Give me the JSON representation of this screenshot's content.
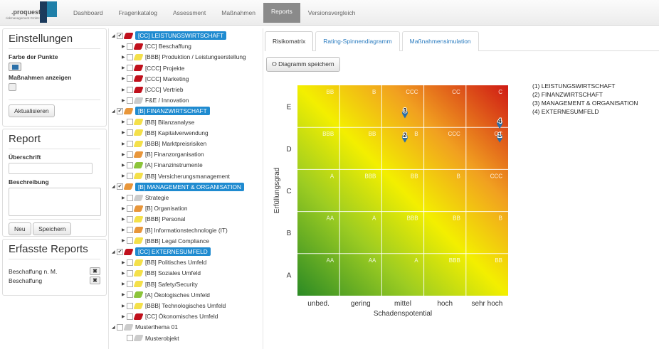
{
  "brand": {
    "name": ".proquest",
    "sub": "riskmanagement GmbH"
  },
  "nav": {
    "items": [
      "Dashboard",
      "Fragenkatalog",
      "Assessment",
      "Maßnahmen",
      "Reports",
      "Versionsvergleich"
    ],
    "active": 4
  },
  "settings": {
    "title": "Einstellungen",
    "color_label": "Farbe der Punkte",
    "color_value": "#2a6fa8",
    "measures_label": "Maßnahmen anzeigen",
    "update_button": "Aktualisieren"
  },
  "report": {
    "title": "Report",
    "heading_label": "Überschrift",
    "heading_value": "",
    "desc_label": "Beschreibung",
    "desc_value": "",
    "new_button": "Neu",
    "save_button": "Speichern"
  },
  "saved": {
    "title": "Erfasste Reports",
    "items": [
      "Beschaffung n. M.",
      "Beschaffung"
    ],
    "delete_icon": "x-icon"
  },
  "tree": [
    {
      "label": "[CC] LEISTUNGSWIRTSCHAFT",
      "level": 0,
      "color": "red",
      "checked": true,
      "hl": true
    },
    {
      "label": "[CC] Beschaffung",
      "level": 1,
      "color": "red"
    },
    {
      "label": "[BBB] Produktion / Leistungserstellung",
      "level": 1,
      "color": "yel"
    },
    {
      "label": "[CCC] Projekte",
      "level": 1,
      "color": "red"
    },
    {
      "label": "[CCC] Marketing",
      "level": 1,
      "color": "red"
    },
    {
      "label": "[CCC] Vertrieb",
      "level": 1,
      "color": "red"
    },
    {
      "label": "F&E / Innovation",
      "level": 1,
      "color": "gry"
    },
    {
      "label": "[B] FINANZWIRTSCHAFT",
      "level": 0,
      "color": "ora",
      "checked": true,
      "hl": true
    },
    {
      "label": "[BB] Bilanzanalyse",
      "level": 1,
      "color": "yel"
    },
    {
      "label": "[BB] Kapitalverwendung",
      "level": 1,
      "color": "yel"
    },
    {
      "label": "[BBB] Marktpreisrisiken",
      "level": 1,
      "color": "yel"
    },
    {
      "label": "[B] Finanzorganisation",
      "level": 1,
      "color": "ora"
    },
    {
      "label": "[A] Finanzinstrumente",
      "level": 1,
      "color": "grn"
    },
    {
      "label": "[BB] Versicherungsmanagement",
      "level": 1,
      "color": "yel"
    },
    {
      "label": "[B] MANAGEMENT & ORGANISATION",
      "level": 0,
      "color": "ora",
      "checked": true,
      "hl": true
    },
    {
      "label": "Strategie",
      "level": 1,
      "color": "gry"
    },
    {
      "label": "[B] Organisation",
      "level": 1,
      "color": "ora"
    },
    {
      "label": "[BBB] Personal",
      "level": 1,
      "color": "yel"
    },
    {
      "label": "[B] Informationstechnologie (IT)",
      "level": 1,
      "color": "ora"
    },
    {
      "label": "[BBB] Legal Compliance",
      "level": 1,
      "color": "yel"
    },
    {
      "label": "[CC] EXTERNESUMFELD",
      "level": 0,
      "color": "red",
      "checked": true,
      "hl": true
    },
    {
      "label": "[BB] Politisches Umfeld",
      "level": 1,
      "color": "yel"
    },
    {
      "label": "[BB] Soziales Umfeld",
      "level": 1,
      "color": "yel"
    },
    {
      "label": "[BB] Safety/Security",
      "level": 1,
      "color": "yel"
    },
    {
      "label": "[A] Ökologisches Umfeld",
      "level": 1,
      "color": "grn"
    },
    {
      "label": "[BBB] Technologisches Umfeld",
      "level": 1,
      "color": "yel"
    },
    {
      "label": "[CC] Ökonomisches Umfeld",
      "level": 1,
      "color": "red"
    },
    {
      "label": "Musterthema 01",
      "level": 0,
      "color": "gry",
      "checked": false,
      "hl": false
    },
    {
      "label": "Musterobjekt",
      "level": 1,
      "color": "gry",
      "leaf": true
    }
  ],
  "tabs": [
    "Risikomatrix",
    "Rating-Spinnendiagramm",
    "Maßnahmensimulation"
  ],
  "active_tab": 0,
  "save_diagram_button": "Diagramm speichern",
  "chart_data": {
    "type": "scatter",
    "xlabel": "Schadenspotential",
    "ylabel": "Erfüllungsgrad",
    "x_categories": [
      "unbed.",
      "gering",
      "mittel",
      "hoch",
      "sehr hoch"
    ],
    "y_categories": [
      "A",
      "B",
      "C",
      "D",
      "E"
    ],
    "cell_ratings": [
      [
        "AA",
        "AA",
        "A",
        "BBB",
        "BB"
      ],
      [
        "AA",
        "A",
        "BBB",
        "BB",
        "B"
      ],
      [
        "A",
        "BBB",
        "BB",
        "B",
        "CCC"
      ],
      [
        "BBB",
        "BB",
        "B",
        "CCC",
        "CC"
      ],
      [
        "BB",
        "B",
        "CCC",
        "CC",
        "C"
      ]
    ],
    "points": [
      {
        "label": "1",
        "x": 4.8,
        "y": 3.72
      },
      {
        "label": "2",
        "x": 2.55,
        "y": 3.72
      },
      {
        "label": "3",
        "x": 2.55,
        "y": 4.3
      },
      {
        "label": "4",
        "x": 4.8,
        "y": 4.05
      }
    ],
    "point_color": "#2a6fa8",
    "legend": [
      "(1) LEISTUNGSWIRTSCHAFT",
      "(2) FINANZWIRTSCHAFT",
      "(3) MANAGEMENT & ORGANISATION",
      "(4) EXTERNESUMFELD"
    ]
  }
}
